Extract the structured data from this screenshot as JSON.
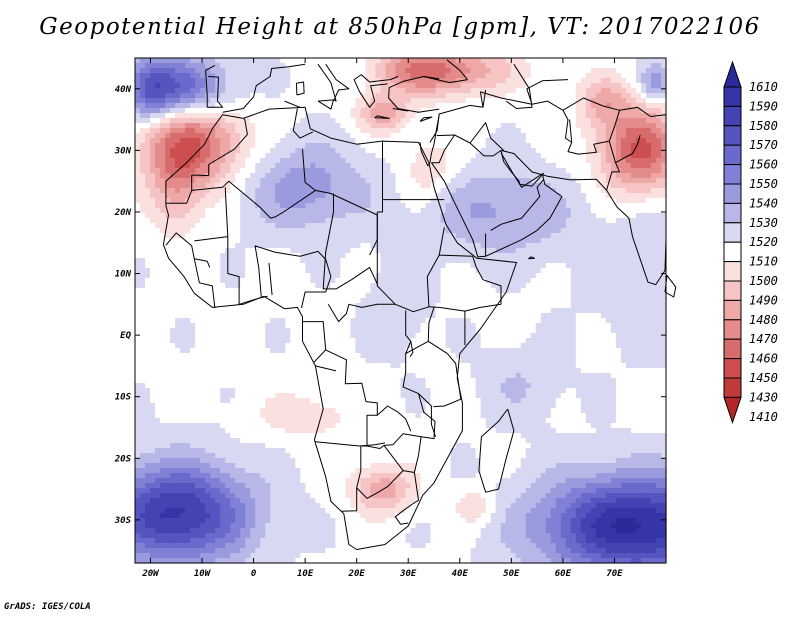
{
  "title": "Geopotential Height at 850hPa [gpm], VT: 2017022106",
  "credit": "GrADS: IGES/COLA",
  "map": {
    "variable": "Geopotential Height at 850hPa",
    "units": "gpm",
    "valid_time": "2017022106",
    "lon_range": [
      -23,
      80
    ],
    "lat_range": [
      -37,
      45
    ],
    "lon_ticks": [
      {
        "value": -20,
        "label": "20W"
      },
      {
        "value": -10,
        "label": "10W"
      },
      {
        "value": 0,
        "label": "0"
      },
      {
        "value": 10,
        "label": "10E"
      },
      {
        "value": 20,
        "label": "20E"
      },
      {
        "value": 30,
        "label": "30E"
      },
      {
        "value": 40,
        "label": "40E"
      },
      {
        "value": 50,
        "label": "50E"
      },
      {
        "value": 60,
        "label": "60E"
      },
      {
        "value": 70,
        "label": "70E"
      }
    ],
    "lat_ticks": [
      {
        "value": 40,
        "label": "40N"
      },
      {
        "value": 30,
        "label": "30N"
      },
      {
        "value": 20,
        "label": "20N"
      },
      {
        "value": 10,
        "label": "10N"
      },
      {
        "value": 0,
        "label": "EQ"
      },
      {
        "value": -10,
        "label": "10S"
      },
      {
        "value": -20,
        "label": "20S"
      },
      {
        "value": -30,
        "label": "30S"
      }
    ],
    "colorbar": {
      "labels": [
        "1610",
        "1590",
        "1580",
        "1570",
        "1560",
        "1550",
        "1540",
        "1530",
        "1520",
        "1510",
        "1500",
        "1490",
        "1480",
        "1470",
        "1460",
        "1450",
        "1430",
        "1410"
      ],
      "top_arrow_color": "#2a2a9a",
      "bottom_arrow_color": "#b52626",
      "colors": [
        "#2a2a9a",
        "#3535a8",
        "#4343b4",
        "#5555c0",
        "#6a6acc",
        "#8080d6",
        "#9a9ade",
        "#b8b8e8",
        "#d8d8f2",
        "#ffffff",
        "#fbe0e0",
        "#f6c4c4",
        "#eea8a8",
        "#e48b8b",
        "#d86c6c",
        "#cc4e4e",
        "#c03a3a",
        "#b52626"
      ]
    },
    "blobs": [
      {
        "lon": -12,
        "lat": 31,
        "rlon": 10,
        "rlat": 7,
        "amp": -58
      },
      {
        "lon": -15,
        "lat": 23,
        "rlon": 5,
        "rlat": 7,
        "amp": -24
      },
      {
        "lon": 34,
        "lat": 43,
        "rlon": 14,
        "rlat": 4,
        "amp": -55
      },
      {
        "lon": 25,
        "lat": 36,
        "rlon": 5,
        "rlat": 3,
        "amp": -35
      },
      {
        "lon": 75,
        "lat": 30,
        "rlon": 8,
        "rlat": 7,
        "amp": -60
      },
      {
        "lon": 68,
        "lat": 38,
        "rlon": 5,
        "rlat": 4,
        "amp": -28
      },
      {
        "lon": 34,
        "lat": 27,
        "rlon": 5,
        "rlat": 5,
        "amp": -18
      },
      {
        "lon": 25,
        "lat": -25,
        "rlon": 6,
        "rlat": 4,
        "amp": -34
      },
      {
        "lon": 43,
        "lat": -28,
        "rlon": 4,
        "rlat": 3,
        "amp": -18
      },
      {
        "lon": 10,
        "lat": -13,
        "rlon": 10,
        "rlat": 4,
        "amp": -14
      },
      {
        "lon": -15,
        "lat": 40,
        "rlon": 10,
        "rlat": 5,
        "amp": 55
      },
      {
        "lon": -20,
        "lat": 40,
        "rlon": 4,
        "rlat": 5,
        "amp": 25
      },
      {
        "lon": 10,
        "lat": 24,
        "rlon": 12,
        "rlat": 7,
        "amp": 28
      },
      {
        "lon": 20,
        "lat": 43,
        "rlon": 8,
        "rlat": 4,
        "amp": 16
      },
      {
        "lon": 48,
        "lat": 20,
        "rlon": 14,
        "rlat": 7,
        "amp": 24
      },
      {
        "lon": 78,
        "lat": 41,
        "rlon": 3,
        "rlat": 3,
        "amp": 30
      },
      {
        "lon": -15,
        "lat": -29,
        "rlon": 14,
        "rlat": 8,
        "amp": 75
      },
      {
        "lon": 74,
        "lat": -31,
        "rlon": 18,
        "rlat": 8,
        "amp": 85
      },
      {
        "lon": 52,
        "lat": -8,
        "rlon": 8,
        "rlat": 6,
        "amp": 12
      },
      {
        "lon": 80,
        "lat": 10,
        "rlon": 14,
        "rlat": 12,
        "amp": 12
      },
      {
        "lon": 28,
        "lat": 5,
        "rlon": 6,
        "rlat": 8,
        "amp": 10
      }
    ]
  }
}
